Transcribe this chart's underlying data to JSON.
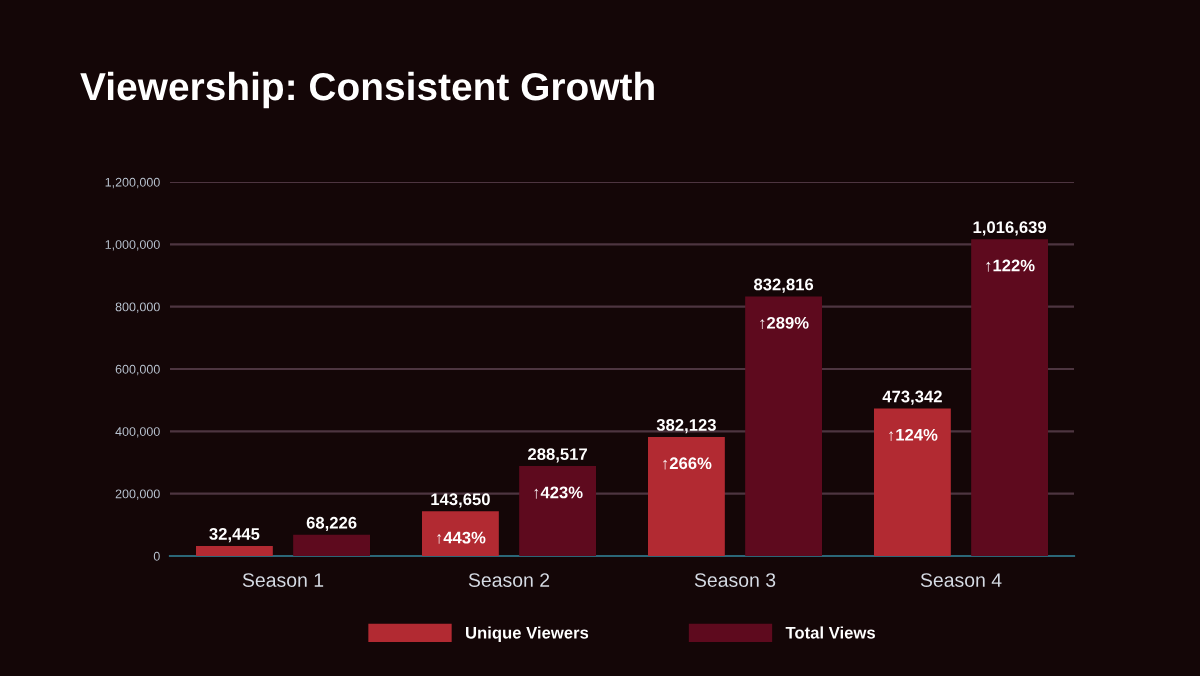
{
  "chart_data": {
    "type": "bar",
    "title": "Viewership: Consistent Growth",
    "categories": [
      "Season 1",
      "Season 2",
      "Season 3",
      "Season 4"
    ],
    "series": [
      {
        "name": "Unique Viewers",
        "color": "#b22a32",
        "values": [
          32445,
          143650,
          382123,
          473342
        ],
        "value_labels": [
          "32,445",
          "143,650",
          "382,123",
          "473,342"
        ]
      },
      {
        "name": "Total Views",
        "color": "#5e0a1e",
        "values": [
          68226,
          288517,
          832816,
          1016639
        ],
        "value_labels": [
          "68,226",
          "288,517",
          "832,816",
          "1,016,639"
        ]
      }
    ],
    "annotations": [
      "↑443%",
      "↑423%",
      "↑266%",
      "↑289%",
      "↑124%",
      "↑122%"
    ],
    "ylim": [
      0,
      1200000
    ],
    "yticks": [
      {
        "value": 0,
        "label": "0"
      },
      {
        "value": 200000,
        "label": "200,000"
      },
      {
        "value": 400000,
        "label": "400,000"
      },
      {
        "value": 600000,
        "label": "600,000"
      },
      {
        "value": 800000,
        "label": "800,000"
      },
      {
        "value": 1000000,
        "label": "1,000,000"
      },
      {
        "value": 1200000,
        "label": "1,200,000"
      }
    ],
    "grid": "y",
    "legend": "bottom"
  }
}
